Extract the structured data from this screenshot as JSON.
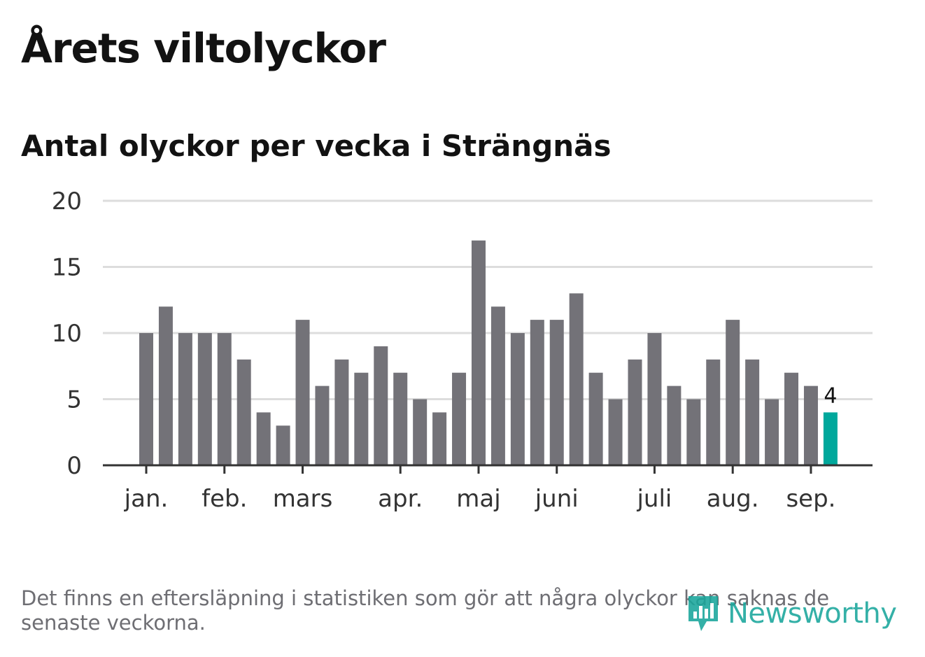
{
  "title": "Årets viltolyckor",
  "subtitle": "Antal olyckor per vecka i Strängnäs",
  "footnote": "Det finns en eftersläpning i statistiken som gör att några olyckor kan saknas de senaste veckorna.",
  "brand": {
    "name": "Newsworthy",
    "icon": "newsworthy-logo-icon",
    "color": "#19a69b"
  },
  "colors": {
    "bar": "#737278",
    "highlight": "#00a89c",
    "grid": "#dddddd",
    "axis": "#333333"
  },
  "chart_data": {
    "type": "bar",
    "ylim": [
      0,
      20
    ],
    "yticks": [
      0,
      5,
      10,
      15,
      20
    ],
    "grid": true,
    "month_labels": [
      "jan.",
      "feb.",
      "mars",
      "apr.",
      "maj",
      "juni",
      "juli",
      "aug.",
      "sep."
    ],
    "month_label_bar_index": [
      0,
      4,
      8,
      13,
      17,
      21,
      26,
      30,
      34
    ],
    "values": [
      10,
      12,
      10,
      10,
      10,
      8,
      4,
      3,
      11,
      6,
      8,
      7,
      9,
      7,
      5,
      4,
      7,
      17,
      12,
      10,
      11,
      11,
      13,
      7,
      5,
      8,
      10,
      6,
      5,
      8,
      11,
      8,
      5,
      7,
      6,
      4
    ],
    "highlight_index": 35,
    "highlight_label": "4"
  }
}
